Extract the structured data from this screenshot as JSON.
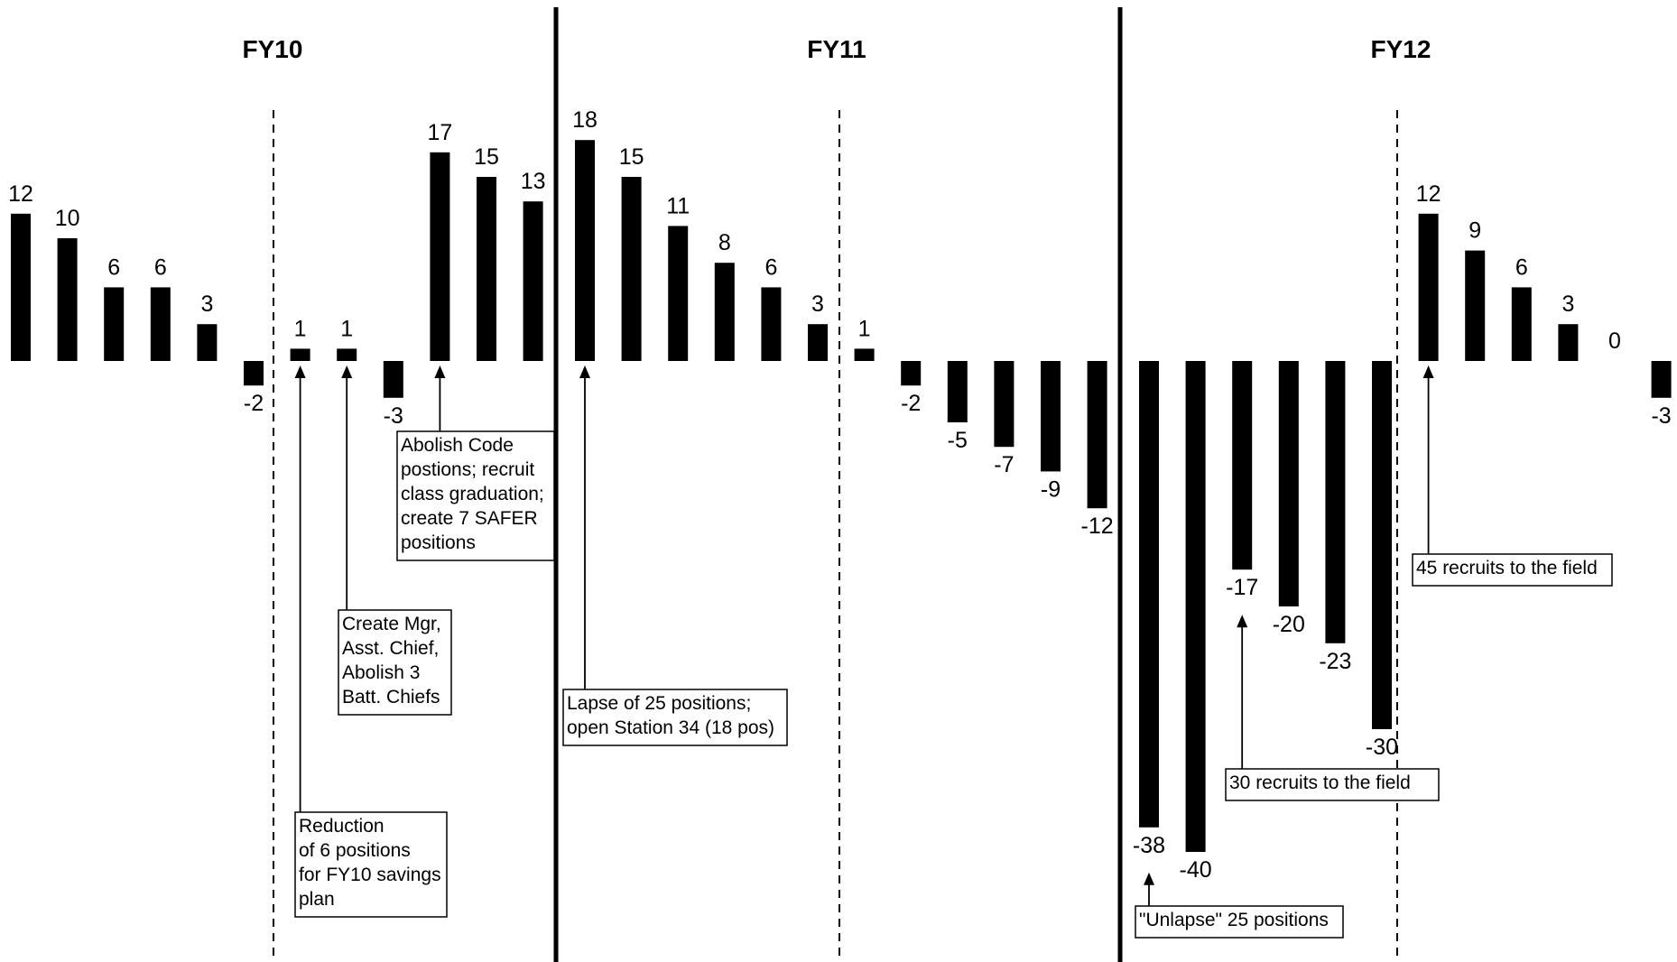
{
  "chart_data": {
    "type": "bar",
    "title": "",
    "xlabel": "",
    "ylabel": "",
    "ylim": [
      -40,
      18
    ],
    "grid": false,
    "legend": "none",
    "bar_color": "#000000",
    "periods": [
      {
        "name": "FY10",
        "values": [
          12,
          10,
          6,
          6,
          3,
          -2,
          1,
          1,
          -3,
          17,
          15,
          13
        ]
      },
      {
        "name": "FY11",
        "values": [
          18,
          15,
          11,
          8,
          6,
          3,
          1,
          -2,
          -5,
          -7,
          -9,
          -12
        ]
      },
      {
        "name": "FY12",
        "values": [
          -38,
          -40,
          -17,
          -20,
          -23,
          -30,
          12,
          9,
          6,
          3,
          0,
          -3
        ]
      }
    ],
    "annotations": [
      {
        "period": 0,
        "bar": 6,
        "lines": [
          "Reduction",
          "of 6 positions",
          "for FY10 savings",
          "plan"
        ]
      },
      {
        "period": 0,
        "bar": 7,
        "lines": [
          "Create Mgr,",
          "Asst. Chief,",
          "Abolish 3",
          "Batt. Chiefs"
        ]
      },
      {
        "period": 0,
        "bar": 9,
        "lines": [
          "Abolish Code",
          "postions; recruit",
          "class graduation;",
          "create 7 SAFER",
          "positions"
        ]
      },
      {
        "period": 1,
        "bar": 0,
        "lines": [
          "Lapse of 25 positions;",
          "open Station 34 (18 pos)"
        ]
      },
      {
        "period": 2,
        "bar": 0,
        "lines": [
          "\"Unlapse\" 25 positions"
        ]
      },
      {
        "period": 2,
        "bar": 2,
        "lines": [
          "30 recruits to the field"
        ]
      },
      {
        "period": 2,
        "bar": 6,
        "lines": [
          "45 recruits to the field"
        ]
      }
    ]
  }
}
